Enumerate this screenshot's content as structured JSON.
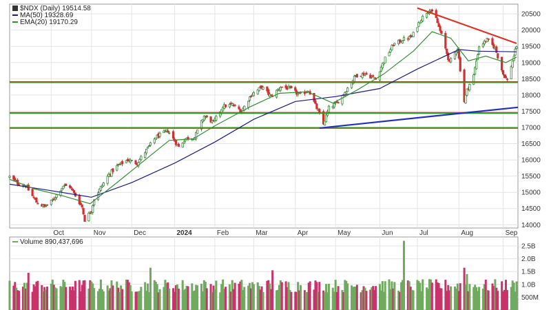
{
  "colors": {
    "up": "#3a8a3a",
    "down": "#d03030",
    "vol_up": "#6faa5f",
    "vol_down": "#c8336a",
    "ma50": "#1a1a8a",
    "ema20": "#2f8f2f",
    "resistance": "#e01818",
    "support": "#22a022",
    "trendline_up": "#2030c0",
    "trendline_down": "#e03020",
    "grid": "#e4e4e4",
    "panel_border": "#9a9a9a"
  },
  "legend": {
    "main": "$NDX (Daily) 19514.58",
    "ma": "MA(50) 19328.69",
    "ema": "EMA(20) 19170.29",
    "volume": "Volume 890,437,696"
  },
  "chart_data": [
    {
      "type": "candlestick",
      "title": "$NDX (Daily) 19514.58",
      "y_ticks": [
        14000,
        14500,
        15000,
        15500,
        16000,
        16500,
        17000,
        17500,
        18000,
        18500,
        19000,
        19500,
        20000,
        20500
      ],
      "ylim": [
        13900,
        20800
      ],
      "x_ticks": [
        {
          "label": "Oct",
          "date": "2023-10-02",
          "bold": false
        },
        {
          "label": "Nov",
          "date": "2023-11-01",
          "bold": false
        },
        {
          "label": "Dec",
          "date": "2023-12-01",
          "bold": false
        },
        {
          "label": "2024",
          "date": "2024-01-02",
          "bold": true
        },
        {
          "label": "Feb",
          "date": "2024-02-01",
          "bold": false
        },
        {
          "label": "Mar",
          "date": "2024-03-01",
          "bold": false
        },
        {
          "label": "Apr",
          "date": "2024-04-01",
          "bold": false
        },
        {
          "label": "May",
          "date": "2024-05-01",
          "bold": false
        },
        {
          "label": "Jun",
          "date": "2024-06-03",
          "bold": false
        },
        {
          "label": "Jul",
          "date": "2024-07-01",
          "bold": false
        },
        {
          "label": "Aug",
          "date": "2024-08-01",
          "bold": false
        },
        {
          "label": "Sep",
          "date": "2024-09-03",
          "bold": false
        }
      ],
      "xlim": [
        "2023-09-01",
        "2024-09-14"
      ],
      "grid": true,
      "legend_position": "top-left",
      "close_path": [
        [
          "2023-09-01",
          15480
        ],
        [
          "2023-09-07",
          15280
        ],
        [
          "2023-09-13",
          15200
        ],
        [
          "2023-09-21",
          14700
        ],
        [
          "2023-09-27",
          14550
        ],
        [
          "2023-10-03",
          14750
        ],
        [
          "2023-10-11",
          15200
        ],
        [
          "2023-10-16",
          15180
        ],
        [
          "2023-10-20",
          14900
        ],
        [
          "2023-10-25",
          14550
        ],
        [
          "2023-10-27",
          14150
        ],
        [
          "2023-11-01",
          14450
        ],
        [
          "2023-11-03",
          14800
        ],
        [
          "2023-11-08",
          15150
        ],
        [
          "2023-11-14",
          15550
        ],
        [
          "2023-11-20",
          15800
        ],
        [
          "2023-11-28",
          16000
        ],
        [
          "2023-12-05",
          15900
        ],
        [
          "2023-12-12",
          16300
        ],
        [
          "2023-12-19",
          16700
        ],
        [
          "2023-12-28",
          16900
        ],
        [
          "2024-01-05",
          16400
        ],
        [
          "2024-01-10",
          16650
        ],
        [
          "2024-01-17",
          16700
        ],
        [
          "2024-01-24",
          17350
        ],
        [
          "2024-01-31",
          17150
        ],
        [
          "2024-02-07",
          17650
        ],
        [
          "2024-02-14",
          17700
        ],
        [
          "2024-02-21",
          17500
        ],
        [
          "2024-02-28",
          18000
        ],
        [
          "2024-03-07",
          18250
        ],
        [
          "2024-03-14",
          17950
        ],
        [
          "2024-03-21",
          18250
        ],
        [
          "2024-03-28",
          18200
        ],
        [
          "2024-04-04",
          18000
        ],
        [
          "2024-04-11",
          18150
        ],
        [
          "2024-04-18",
          17500
        ],
        [
          "2024-04-22",
          17100
        ],
        [
          "2024-04-26",
          17600
        ],
        [
          "2024-05-02",
          17750
        ],
        [
          "2024-05-09",
          18150
        ],
        [
          "2024-05-16",
          18600
        ],
        [
          "2024-05-23",
          18650
        ],
        [
          "2024-05-31",
          18500
        ],
        [
          "2024-06-06",
          19050
        ],
        [
          "2024-06-13",
          19550
        ],
        [
          "2024-06-20",
          19700
        ],
        [
          "2024-06-27",
          19800
        ],
        [
          "2024-07-03",
          20300
        ],
        [
          "2024-07-10",
          20650
        ],
        [
          "2024-07-15",
          20350
        ],
        [
          "2024-07-19",
          19850
        ],
        [
          "2024-07-25",
          19000
        ],
        [
          "2024-07-31",
          19450
        ],
        [
          "2024-08-05",
          17800
        ],
        [
          "2024-08-07",
          18150
        ],
        [
          "2024-08-12",
          18600
        ],
        [
          "2024-08-16",
          19500
        ],
        [
          "2024-08-22",
          19700
        ],
        [
          "2024-08-28",
          19450
        ],
        [
          "2024-09-03",
          18650
        ],
        [
          "2024-09-06",
          18450
        ],
        [
          "2024-09-10",
          19050
        ],
        [
          "2024-09-13",
          19515
        ]
      ],
      "series": [
        {
          "name": "MA(50) 19328.69",
          "kind": "ma50",
          "values": [
            [
              "2023-09-01",
              15250
            ],
            [
              "2023-10-02",
              15050
            ],
            [
              "2023-11-01",
              14850
            ],
            [
              "2023-12-01",
              15300
            ],
            [
              "2024-01-02",
              15900
            ],
            [
              "2024-02-01",
              16550
            ],
            [
              "2024-03-01",
              17250
            ],
            [
              "2024-04-01",
              17800
            ],
            [
              "2024-05-01",
              17950
            ],
            [
              "2024-06-03",
              18200
            ],
            [
              "2024-07-01",
              18800
            ],
            [
              "2024-08-01",
              19400
            ],
            [
              "2024-08-15",
              19350
            ],
            [
              "2024-09-13",
              19330
            ]
          ]
        },
        {
          "name": "EMA(20) 19170.29",
          "kind": "ema20",
          "values": [
            [
              "2023-09-01",
              15400
            ],
            [
              "2023-09-20",
              15100
            ],
            [
              "2023-10-10",
              14900
            ],
            [
              "2023-10-31",
              14650
            ],
            [
              "2023-11-20",
              15300
            ],
            [
              "2023-12-08",
              15900
            ],
            [
              "2023-12-29",
              16600
            ],
            [
              "2024-01-16",
              16650
            ],
            [
              "2024-02-01",
              17050
            ],
            [
              "2024-02-28",
              17650
            ],
            [
              "2024-03-20",
              18050
            ],
            [
              "2024-04-10",
              18100
            ],
            [
              "2024-04-29",
              17750
            ],
            [
              "2024-05-17",
              18150
            ],
            [
              "2024-06-06",
              18650
            ],
            [
              "2024-06-28",
              19350
            ],
            [
              "2024-07-12",
              19950
            ],
            [
              "2024-07-26",
              19750
            ],
            [
              "2024-08-08",
              19050
            ],
            [
              "2024-08-21",
              19200
            ],
            [
              "2024-09-05",
              19000
            ],
            [
              "2024-09-13",
              19170
            ]
          ]
        }
      ],
      "horizontal_lines": [
        {
          "kind": "resistance",
          "y": 18400
        },
        {
          "kind": "resistance",
          "y": 17450
        },
        {
          "kind": "resistance",
          "y": 16980
        },
        {
          "kind": "support",
          "y": 18390
        },
        {
          "kind": "support",
          "y": 17440
        },
        {
          "kind": "support",
          "y": 16990
        }
      ],
      "trendlines": [
        {
          "kind": "trendline_up",
          "from": [
            "2024-04-19",
            16980
          ],
          "to": [
            "2024-09-14",
            17620
          ]
        },
        {
          "kind": "trendline_down",
          "from": [
            "2024-07-01",
            20680
          ],
          "to": [
            "2024-09-13",
            19590
          ]
        }
      ]
    },
    {
      "type": "bar",
      "title": "Volume 890,437,696",
      "y_ticks": [
        {
          "label": "500M",
          "value": 500000000
        },
        {
          "label": "1.0B",
          "value": 1000000000
        },
        {
          "label": "1.5B",
          "value": 1500000000
        },
        {
          "label": "2.0B",
          "value": 2000000000
        },
        {
          "label": "2.5B",
          "value": 2500000000
        }
      ],
      "ylim": [
        0,
        2850000000
      ],
      "spikes": [
        [
          "2023-09-15",
          1450000000
        ],
        [
          "2023-12-15",
          1650000000
        ],
        [
          "2024-03-15",
          1550000000
        ],
        [
          "2024-06-21",
          2700000000
        ],
        [
          "2024-08-05",
          1650000000
        ],
        [
          "2024-08-07",
          1400000000
        ]
      ],
      "baseline_volume": 950000000
    }
  ]
}
